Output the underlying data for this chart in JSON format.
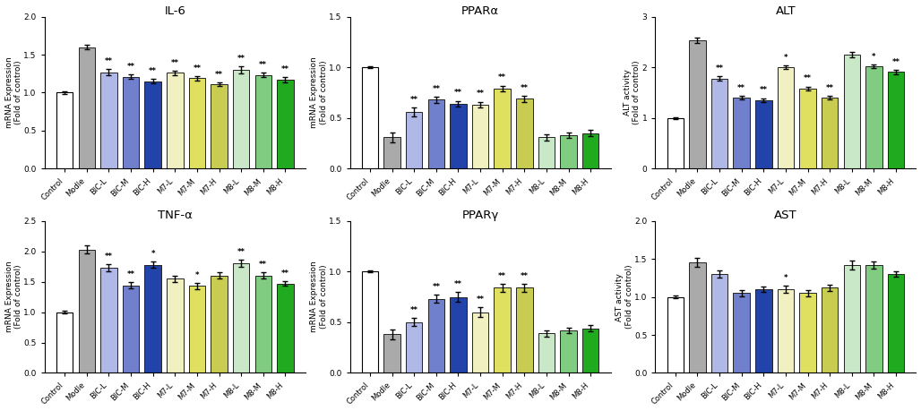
{
  "categories": [
    "Control",
    "Modle",
    "BIC-L",
    "BIC-M",
    "BIC-H",
    "M7-L",
    "M7-M",
    "M7-H",
    "M8-L",
    "M8-M",
    "M8-H"
  ],
  "colors": [
    "#FFFFFF",
    "#AAAAAA",
    "#B0B8E8",
    "#7080CC",
    "#2244AA",
    "#F0F0C0",
    "#E0E060",
    "#C8CC50",
    "#C8E8C8",
    "#80CC80",
    "#20AA20"
  ],
  "bar_edge_color": "#222222",
  "subplots": [
    {
      "title": "IL-6",
      "ylabel": "mRNA Expression\n(Fold of control)",
      "ylim": [
        0,
        2.0
      ],
      "yticks": [
        0.0,
        0.5,
        1.0,
        1.5,
        2.0
      ],
      "values": [
        1.0,
        1.6,
        1.27,
        1.21,
        1.15,
        1.26,
        1.19,
        1.11,
        1.3,
        1.23,
        1.17
      ],
      "errors": [
        0.02,
        0.03,
        0.04,
        0.03,
        0.03,
        0.03,
        0.03,
        0.02,
        0.05,
        0.03,
        0.03
      ],
      "sig": [
        "",
        "",
        "**",
        "**",
        "**",
        "**",
        "**",
        "**",
        "**",
        "**",
        "**"
      ]
    },
    {
      "title": "PPARα",
      "ylabel": "mRNA Expression\n(Fold of control)",
      "ylim": [
        0,
        1.5
      ],
      "yticks": [
        0.0,
        0.5,
        1.0,
        1.5
      ],
      "values": [
        1.0,
        0.31,
        0.56,
        0.68,
        0.64,
        0.63,
        0.79,
        0.69,
        0.31,
        0.33,
        0.35
      ],
      "errors": [
        0.01,
        0.05,
        0.04,
        0.03,
        0.03,
        0.03,
        0.03,
        0.03,
        0.03,
        0.03,
        0.03
      ],
      "sig": [
        "",
        "",
        "**",
        "**",
        "**",
        "**",
        "**",
        "**",
        "",
        "",
        ""
      ]
    },
    {
      "title": "ALT",
      "ylabel": "ALT activity\n(Fold of control)",
      "ylim": [
        0,
        3.0
      ],
      "yticks": [
        0,
        1,
        2,
        3
      ],
      "values": [
        1.0,
        2.53,
        1.78,
        1.4,
        1.35,
        2.0,
        1.58,
        1.4,
        2.25,
        2.02,
        1.91
      ],
      "errors": [
        0.02,
        0.05,
        0.05,
        0.04,
        0.04,
        0.04,
        0.04,
        0.04,
        0.05,
        0.04,
        0.04
      ],
      "sig": [
        "",
        "",
        "**",
        "**",
        "**",
        "*",
        "**",
        "**",
        "",
        "*",
        "**"
      ]
    },
    {
      "title": "TNF-α",
      "ylabel": "mRNA Expression\n(Fold of control)",
      "ylim": [
        0,
        2.5
      ],
      "yticks": [
        0.0,
        0.5,
        1.0,
        1.5,
        2.0,
        2.5
      ],
      "values": [
        1.0,
        2.03,
        1.73,
        1.44,
        1.78,
        1.55,
        1.43,
        1.6,
        1.8,
        1.6,
        1.47
      ],
      "errors": [
        0.02,
        0.07,
        0.06,
        0.05,
        0.05,
        0.05,
        0.05,
        0.05,
        0.06,
        0.05,
        0.04
      ],
      "sig": [
        "",
        "",
        "**",
        "**",
        "*",
        "",
        "*",
        "",
        "**",
        "**",
        "**"
      ]
    },
    {
      "title": "PPARγ",
      "ylabel": "mRNA Expression\n(Fold of control)",
      "ylim": [
        0,
        1.5
      ],
      "yticks": [
        0.0,
        0.5,
        1.0,
        1.5
      ],
      "values": [
        1.0,
        0.38,
        0.5,
        0.73,
        0.75,
        0.6,
        0.84,
        0.84,
        0.39,
        0.42,
        0.44
      ],
      "errors": [
        0.01,
        0.05,
        0.04,
        0.04,
        0.05,
        0.05,
        0.04,
        0.04,
        0.03,
        0.03,
        0.03
      ],
      "sig": [
        "",
        "",
        "**",
        "**",
        "**",
        "**",
        "**",
        "**",
        "",
        "",
        ""
      ]
    },
    {
      "title": "AST",
      "ylabel": "AST activity\n(Fold of control)",
      "ylim": [
        0,
        2.0
      ],
      "yticks": [
        0.0,
        0.5,
        1.0,
        1.5,
        2.0
      ],
      "values": [
        1.0,
        1.45,
        1.3,
        1.05,
        1.1,
        1.1,
        1.05,
        1.12,
        1.42,
        1.42,
        1.3
      ],
      "errors": [
        0.02,
        0.06,
        0.05,
        0.04,
        0.04,
        0.05,
        0.04,
        0.04,
        0.06,
        0.05,
        0.04
      ],
      "sig": [
        "",
        "",
        "",
        "",
        "",
        "*",
        "",
        "",
        "",
        "",
        ""
      ]
    }
  ]
}
